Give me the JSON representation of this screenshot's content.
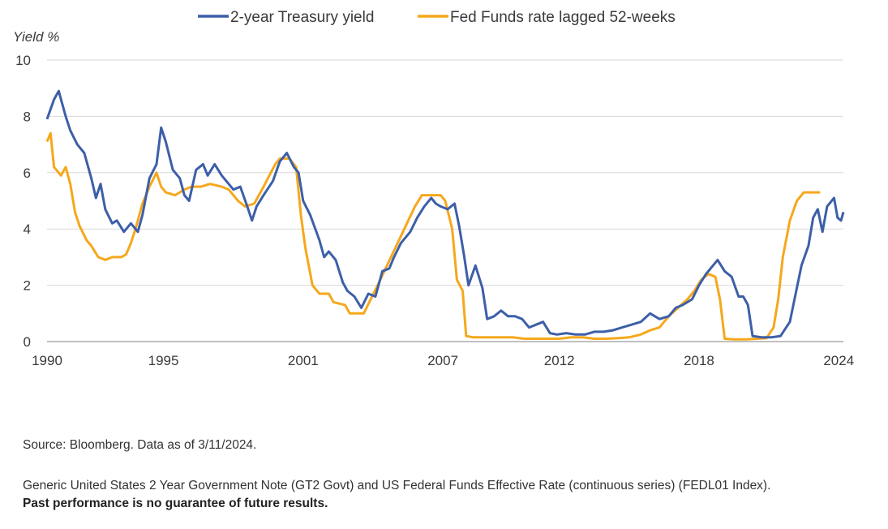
{
  "chart_data": {
    "type": "line",
    "ylabel": "Yield %",
    "ylim": [
      0,
      10
    ],
    "y_ticks": [
      "10",
      "8",
      "6",
      "4",
      "2",
      "0"
    ],
    "x_ticks": [
      "1990",
      "1995",
      "2001",
      "2007",
      "2012",
      "2018",
      "2024"
    ],
    "xlim": [
      1990,
      2024.2
    ],
    "grid": true,
    "legend_position": "top",
    "series": [
      {
        "name": "2-year Treasury yield",
        "color": "#3d5fa8",
        "points": [
          [
            1990.0,
            7.9
          ],
          [
            1990.3,
            8.6
          ],
          [
            1990.5,
            8.9
          ],
          [
            1990.8,
            8.0
          ],
          [
            1991.0,
            7.5
          ],
          [
            1991.3,
            7.0
          ],
          [
            1991.6,
            6.7
          ],
          [
            1991.9,
            5.8
          ],
          [
            1992.1,
            5.1
          ],
          [
            1992.3,
            5.6
          ],
          [
            1992.5,
            4.7
          ],
          [
            1992.8,
            4.2
          ],
          [
            1993.0,
            4.3
          ],
          [
            1993.3,
            3.9
          ],
          [
            1993.6,
            4.2
          ],
          [
            1993.9,
            3.9
          ],
          [
            1994.1,
            4.5
          ],
          [
            1994.4,
            5.8
          ],
          [
            1994.7,
            6.3
          ],
          [
            1994.9,
            7.6
          ],
          [
            1995.1,
            7.1
          ],
          [
            1995.4,
            6.1
          ],
          [
            1995.7,
            5.8
          ],
          [
            1995.9,
            5.2
          ],
          [
            1996.1,
            5.0
          ],
          [
            1996.4,
            6.1
          ],
          [
            1996.7,
            6.3
          ],
          [
            1996.9,
            5.9
          ],
          [
            1997.2,
            6.3
          ],
          [
            1997.5,
            5.9
          ],
          [
            1997.8,
            5.6
          ],
          [
            1998.0,
            5.4
          ],
          [
            1998.3,
            5.5
          ],
          [
            1998.6,
            4.8
          ],
          [
            1998.8,
            4.3
          ],
          [
            1999.0,
            4.8
          ],
          [
            1999.3,
            5.2
          ],
          [
            1999.7,
            5.7
          ],
          [
            2000.0,
            6.4
          ],
          [
            2000.3,
            6.7
          ],
          [
            2000.6,
            6.2
          ],
          [
            2000.8,
            6.0
          ],
          [
            2001.0,
            5.0
          ],
          [
            2001.3,
            4.5
          ],
          [
            2001.7,
            3.6
          ],
          [
            2001.9,
            3.0
          ],
          [
            2002.1,
            3.2
          ],
          [
            2002.4,
            2.9
          ],
          [
            2002.7,
            2.1
          ],
          [
            2002.9,
            1.8
          ],
          [
            2003.2,
            1.6
          ],
          [
            2003.5,
            1.2
          ],
          [
            2003.8,
            1.7
          ],
          [
            2004.1,
            1.6
          ],
          [
            2004.4,
            2.5
          ],
          [
            2004.7,
            2.6
          ],
          [
            2004.9,
            3.0
          ],
          [
            2005.2,
            3.5
          ],
          [
            2005.6,
            3.9
          ],
          [
            2005.9,
            4.4
          ],
          [
            2006.2,
            4.8
          ],
          [
            2006.5,
            5.1
          ],
          [
            2006.7,
            4.9
          ],
          [
            2006.9,
            4.8
          ],
          [
            2007.2,
            4.7
          ],
          [
            2007.5,
            4.9
          ],
          [
            2007.7,
            4.1
          ],
          [
            2007.9,
            3.1
          ],
          [
            2008.1,
            2.0
          ],
          [
            2008.4,
            2.7
          ],
          [
            2008.7,
            1.9
          ],
          [
            2008.9,
            0.8
          ],
          [
            2009.2,
            0.9
          ],
          [
            2009.5,
            1.1
          ],
          [
            2009.8,
            0.9
          ],
          [
            2010.1,
            0.9
          ],
          [
            2010.4,
            0.8
          ],
          [
            2010.7,
            0.5
          ],
          [
            2011.0,
            0.6
          ],
          [
            2011.3,
            0.7
          ],
          [
            2011.6,
            0.3
          ],
          [
            2011.9,
            0.25
          ],
          [
            2012.3,
            0.3
          ],
          [
            2012.7,
            0.25
          ],
          [
            2013.1,
            0.25
          ],
          [
            2013.5,
            0.35
          ],
          [
            2013.9,
            0.35
          ],
          [
            2014.3,
            0.4
          ],
          [
            2014.7,
            0.5
          ],
          [
            2015.1,
            0.6
          ],
          [
            2015.5,
            0.7
          ],
          [
            2015.9,
            1.0
          ],
          [
            2016.3,
            0.8
          ],
          [
            2016.7,
            0.9
          ],
          [
            2017.0,
            1.2
          ],
          [
            2017.3,
            1.3
          ],
          [
            2017.7,
            1.5
          ],
          [
            2018.0,
            2.0
          ],
          [
            2018.3,
            2.4
          ],
          [
            2018.6,
            2.7
          ],
          [
            2018.8,
            2.9
          ],
          [
            2019.1,
            2.5
          ],
          [
            2019.4,
            2.3
          ],
          [
            2019.7,
            1.6
          ],
          [
            2019.9,
            1.6
          ],
          [
            2020.1,
            1.3
          ],
          [
            2020.3,
            0.2
          ],
          [
            2020.7,
            0.15
          ],
          [
            2021.1,
            0.15
          ],
          [
            2021.5,
            0.2
          ],
          [
            2021.9,
            0.7
          ],
          [
            2022.1,
            1.5
          ],
          [
            2022.4,
            2.7
          ],
          [
            2022.7,
            3.4
          ],
          [
            2022.9,
            4.4
          ],
          [
            2023.1,
            4.7
          ],
          [
            2023.3,
            3.9
          ],
          [
            2023.5,
            4.8
          ],
          [
            2023.7,
            5.0
          ],
          [
            2023.8,
            5.1
          ],
          [
            2023.95,
            4.4
          ],
          [
            2024.1,
            4.3
          ],
          [
            2024.2,
            4.6
          ]
        ]
      },
      {
        "name": "Fed Funds rate lagged 52-weeks",
        "color": "#f5a81c",
        "points": [
          [
            1990.0,
            7.1
          ],
          [
            1990.15,
            7.4
          ],
          [
            1990.3,
            6.2
          ],
          [
            1990.6,
            5.9
          ],
          [
            1990.8,
            6.2
          ],
          [
            1991.0,
            5.6
          ],
          [
            1991.2,
            4.6
          ],
          [
            1991.4,
            4.1
          ],
          [
            1991.7,
            3.6
          ],
          [
            1991.9,
            3.4
          ],
          [
            1992.2,
            3.0
          ],
          [
            1992.5,
            2.9
          ],
          [
            1992.8,
            3.0
          ],
          [
            1993.2,
            3.0
          ],
          [
            1993.4,
            3.1
          ],
          [
            1993.6,
            3.5
          ],
          [
            1993.8,
            4.0
          ],
          [
            1994.1,
            4.9
          ],
          [
            1994.4,
            5.5
          ],
          [
            1994.7,
            6.0
          ],
          [
            1994.9,
            5.5
          ],
          [
            1995.1,
            5.3
          ],
          [
            1995.5,
            5.2
          ],
          [
            1995.9,
            5.4
          ],
          [
            1996.2,
            5.5
          ],
          [
            1996.6,
            5.5
          ],
          [
            1997.0,
            5.6
          ],
          [
            1997.5,
            5.5
          ],
          [
            1997.8,
            5.4
          ],
          [
            1998.2,
            5.0
          ],
          [
            1998.5,
            4.8
          ],
          [
            1998.9,
            4.9
          ],
          [
            1999.3,
            5.5
          ],
          [
            1999.8,
            6.3
          ],
          [
            2000.0,
            6.5
          ],
          [
            2000.4,
            6.5
          ],
          [
            2000.7,
            6.2
          ],
          [
            2000.9,
            4.5
          ],
          [
            2001.1,
            3.3
          ],
          [
            2001.4,
            2.0
          ],
          [
            2001.7,
            1.7
          ],
          [
            2002.1,
            1.7
          ],
          [
            2002.3,
            1.4
          ],
          [
            2002.8,
            1.3
          ],
          [
            2003.0,
            1.0
          ],
          [
            2003.6,
            1.0
          ],
          [
            2003.9,
            1.5
          ],
          [
            2004.2,
            2.0
          ],
          [
            2004.6,
            2.7
          ],
          [
            2005.0,
            3.4
          ],
          [
            2005.4,
            4.1
          ],
          [
            2005.8,
            4.8
          ],
          [
            2006.1,
            5.2
          ],
          [
            2006.5,
            5.2
          ],
          [
            2006.9,
            5.2
          ],
          [
            2007.1,
            5.0
          ],
          [
            2007.4,
            4.0
          ],
          [
            2007.6,
            2.2
          ],
          [
            2007.85,
            1.8
          ],
          [
            2008.0,
            0.2
          ],
          [
            2008.3,
            0.15
          ],
          [
            2009.0,
            0.15
          ],
          [
            2009.5,
            0.15
          ],
          [
            2010.0,
            0.15
          ],
          [
            2010.5,
            0.1
          ],
          [
            2011.0,
            0.1
          ],
          [
            2011.5,
            0.1
          ],
          [
            2012.0,
            0.1
          ],
          [
            2012.5,
            0.15
          ],
          [
            2013.0,
            0.15
          ],
          [
            2013.5,
            0.1
          ],
          [
            2014.0,
            0.1
          ],
          [
            2014.5,
            0.12
          ],
          [
            2015.0,
            0.15
          ],
          [
            2015.5,
            0.25
          ],
          [
            2015.9,
            0.4
          ],
          [
            2016.3,
            0.5
          ],
          [
            2016.7,
            0.9
          ],
          [
            2017.1,
            1.2
          ],
          [
            2017.5,
            1.5
          ],
          [
            2017.8,
            1.8
          ],
          [
            2018.1,
            2.2
          ],
          [
            2018.4,
            2.4
          ],
          [
            2018.7,
            2.3
          ],
          [
            2018.9,
            1.5
          ],
          [
            2019.1,
            0.1
          ],
          [
            2019.5,
            0.08
          ],
          [
            2020.0,
            0.08
          ],
          [
            2020.5,
            0.1
          ],
          [
            2020.9,
            0.12
          ],
          [
            2021.2,
            0.5
          ],
          [
            2021.4,
            1.5
          ],
          [
            2021.6,
            3.0
          ],
          [
            2021.9,
            4.3
          ],
          [
            2022.2,
            5.0
          ],
          [
            2022.5,
            5.3
          ],
          [
            2022.9,
            5.3
          ],
          [
            2023.2,
            5.3
          ]
        ]
      }
    ]
  },
  "notes": {
    "source": "Source: Bloomberg. Data as of 3/11/2024.",
    "description": "Generic United States 2 Year Government Note (GT2 Govt) and US Federal Funds Effective Rate (continuous series) (FEDL01 Index).",
    "disclaimer": "Past performance is no guarantee of future results."
  }
}
